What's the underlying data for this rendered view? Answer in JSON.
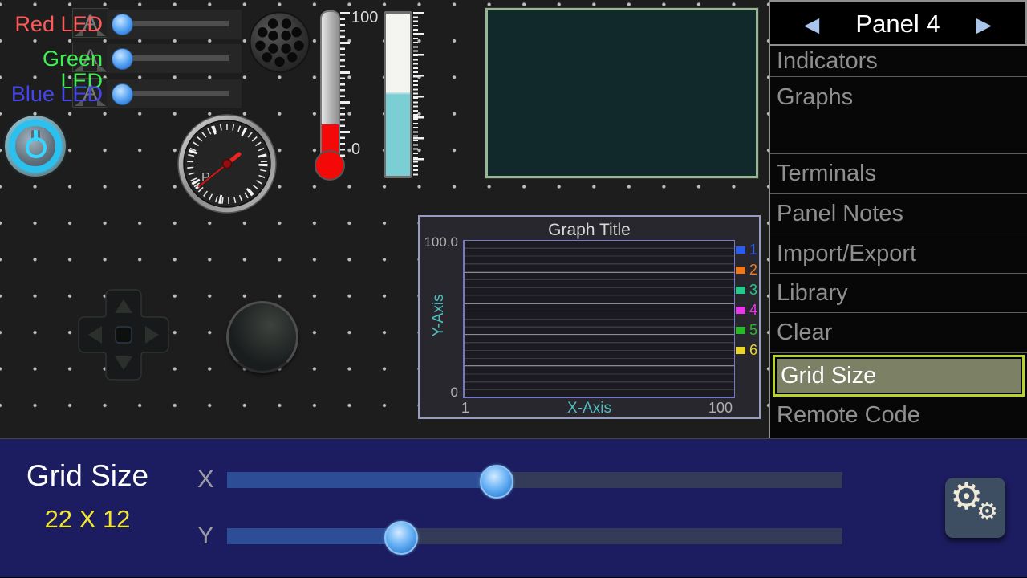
{
  "panel": {
    "text_widgets": [
      {
        "watermark": "A"
      },
      {
        "watermark": "A"
      },
      {
        "watermark": "A"
      }
    ],
    "leds": [
      {
        "label": "Red LED",
        "color": "#ff5a5a"
      },
      {
        "label": "Green LED",
        "color": "#3fee50"
      },
      {
        "label": "Blue LED",
        "color": "#4545ee"
      }
    ],
    "gauge": {
      "face_label": "P"
    },
    "thermometer": {
      "max_label": "100",
      "min_label": "0"
    },
    "graph": {
      "title": "Graph Title",
      "y_axis_label": "Y-Axis",
      "x_axis_label": "X-Axis",
      "y_max_label": "100.0",
      "y_min_label": "0",
      "x_min_label": "1",
      "x_max_label": "100",
      "legend": [
        {
          "label": "1",
          "color": "#2a5cf0"
        },
        {
          "label": "2",
          "color": "#f07818"
        },
        {
          "label": "3",
          "color": "#25c98a"
        },
        {
          "label": "4",
          "color": "#ea35ea"
        },
        {
          "label": "5",
          "color": "#28b828"
        },
        {
          "label": "6",
          "color": "#e8d526"
        }
      ]
    }
  },
  "sidebar": {
    "prev_arrow": "◀",
    "next_arrow": "▶",
    "title": "Panel 4",
    "items": [
      {
        "label": "Indicators"
      },
      {
        "label": "Graphs"
      },
      {
        "label": ""
      },
      {
        "label": "Terminals"
      },
      {
        "label": "Panel Notes"
      },
      {
        "label": "Import/Export"
      },
      {
        "label": "Library"
      },
      {
        "label": "Clear"
      },
      {
        "label": "Grid Size",
        "selected": true
      },
      {
        "label": "Remote Code"
      }
    ]
  },
  "bottom_bar": {
    "title": "Grid Size",
    "value": "22 X 12",
    "x_label": "X",
    "y_label": "Y",
    "x_slider_percent": 43.6,
    "y_slider_percent": 28.0,
    "slider_fill_color": "#2d4e96",
    "gear_icon": "⚙"
  },
  "chart_data": {
    "type": "line",
    "title": "Graph Title",
    "xlabel": "X-Axis",
    "ylabel": "Y-Axis",
    "xlim": [
      1,
      100
    ],
    "ylim": [
      0,
      100
    ],
    "grid": "on",
    "legend_position": "right",
    "series": [
      {
        "name": "1",
        "values": []
      },
      {
        "name": "2",
        "values": []
      },
      {
        "name": "3",
        "values": []
      },
      {
        "name": "4",
        "values": []
      },
      {
        "name": "5",
        "values": []
      },
      {
        "name": "6",
        "values": []
      }
    ]
  }
}
